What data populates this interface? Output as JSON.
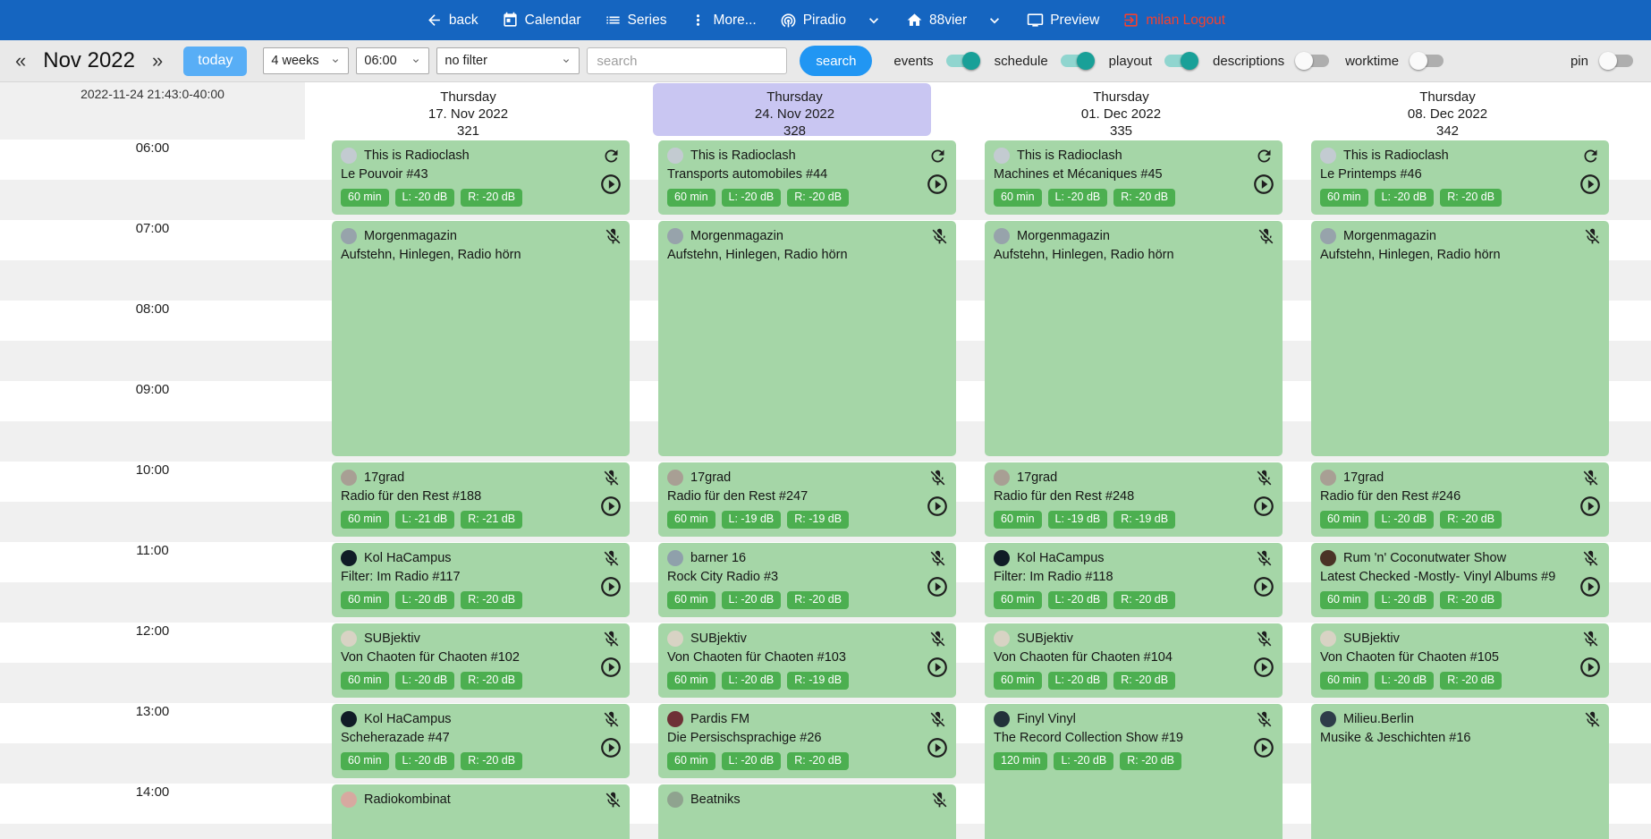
{
  "colors": {
    "navbar_bg": "#1565c0",
    "logout_red": "#f4402f",
    "today_btn": "#58aef6",
    "search_btn": "#2196f3",
    "toggle_on_thumb": "#19a098",
    "toggle_on_track": "#90d5cf",
    "event_bg": "#a5d6a7",
    "badge_bg": "#4caf50",
    "selected_day": "#c9c6f2"
  },
  "navbar": {
    "items": [
      {
        "id": "back",
        "label": "back",
        "icon": "arrow-left"
      },
      {
        "id": "calendar",
        "label": "Calendar",
        "icon": "calendar"
      },
      {
        "id": "series",
        "label": "Series",
        "icon": "list"
      },
      {
        "id": "more",
        "label": "More...",
        "icon": "kebab"
      },
      {
        "id": "piradio",
        "label": "Piradio",
        "icon": "broadcast",
        "chevron": true
      },
      {
        "id": "station",
        "label": "88vier",
        "icon": "home",
        "chevron": true
      },
      {
        "id": "preview",
        "label": "Preview",
        "icon": "preview"
      },
      {
        "id": "logout",
        "label": "milan Logout",
        "icon": "logout",
        "danger": true
      }
    ]
  },
  "toolbar": {
    "prev": "«",
    "next": "»",
    "month_label": "Nov 2022",
    "today_label": "today",
    "range_select": "4 weeks",
    "time_select": "06:00",
    "filter_select": "no filter",
    "search_placeholder": "search",
    "search_button": "search",
    "toggles": [
      {
        "label": "events",
        "on": true
      },
      {
        "label": "schedule",
        "on": true
      },
      {
        "label": "playout",
        "on": true
      },
      {
        "label": "descriptions",
        "on": false
      },
      {
        "label": "worktime",
        "on": false
      }
    ],
    "pin_toggle": {
      "label": "pin",
      "on": false
    }
  },
  "calendar": {
    "now_label": "2022-11-24 21:43:0-40:00",
    "hours": [
      "06:00",
      "07:00",
      "08:00",
      "09:00",
      "10:00",
      "11:00",
      "12:00",
      "13:00",
      "14:00"
    ],
    "columns": [
      {
        "weekday": "Thursday",
        "date": "17. Nov 2022",
        "day_number": "321",
        "highlighted": false,
        "events": [
          {
            "start": "06:00",
            "duration_min": 60,
            "series": "This is Radioclash",
            "episode": "Le Pouvoir #43",
            "badges": [
              "60 min",
              "L: -20 dB",
              "R: -20 dB"
            ],
            "icons": [
              "repeat",
              "play"
            ],
            "avatar_color": "#c3cbd1"
          },
          {
            "start": "07:00",
            "duration_min": 180,
            "series": "Morgenmagazin",
            "episode": "Aufstehn, Hinlegen, Radio hörn",
            "badges": [],
            "icons": [
              "mic-off"
            ],
            "avatar_color": "#97a3ab"
          },
          {
            "start": "10:00",
            "duration_min": 60,
            "series": "17grad",
            "episode": "Radio für den Rest #188",
            "badges": [
              "60 min",
              "L: -21 dB",
              "R: -21 dB"
            ],
            "icons": [
              "mic-off",
              "play"
            ],
            "avatar_color": "#a89f94"
          },
          {
            "start": "11:00",
            "duration_min": 60,
            "series": "Kol HaCampus",
            "episode": "Filter: Im Radio #117",
            "badges": [
              "60 min",
              "L: -20 dB",
              "R: -20 dB"
            ],
            "icons": [
              "mic-off",
              "play"
            ],
            "avatar_color": "#101c26"
          },
          {
            "start": "12:00",
            "duration_min": 60,
            "series": "SUBjektiv",
            "episode": "Von Chaoten für Chaoten #102",
            "badges": [
              "60 min",
              "L: -20 dB",
              "R: -20 dB"
            ],
            "icons": [
              "mic-off",
              "play"
            ],
            "avatar_color": "#d8d3c4"
          },
          {
            "start": "13:00",
            "duration_min": 60,
            "series": "Kol HaCampus",
            "episode": "Scheherazade #47",
            "badges": [
              "60 min",
              "L: -20 dB",
              "R: -20 dB"
            ],
            "icons": [
              "mic-off",
              "play"
            ],
            "avatar_color": "#101c26"
          },
          {
            "start": "14:00",
            "duration_min": 60,
            "series": "Radiokombinat",
            "episode": "",
            "badges": [],
            "icons": [
              "mic-off"
            ],
            "avatar_color": "#d7a9a0"
          }
        ]
      },
      {
        "weekday": "Thursday",
        "date": "24. Nov 2022",
        "day_number": "328",
        "highlighted": true,
        "events": [
          {
            "start": "06:00",
            "duration_min": 60,
            "series": "This is Radioclash",
            "episode": "Transports automobiles #44",
            "badges": [
              "60 min",
              "L: -20 dB",
              "R: -20 dB"
            ],
            "icons": [
              "repeat",
              "play"
            ],
            "avatar_color": "#c3cbd1"
          },
          {
            "start": "07:00",
            "duration_min": 180,
            "series": "Morgenmagazin",
            "episode": "Aufstehn, Hinlegen, Radio hörn",
            "badges": [],
            "icons": [
              "mic-off"
            ],
            "avatar_color": "#97a3ab"
          },
          {
            "start": "10:00",
            "duration_min": 60,
            "series": "17grad",
            "episode": "Radio für den Rest #247",
            "badges": [
              "60 min",
              "L: -19 dB",
              "R: -19 dB"
            ],
            "icons": [
              "mic-off",
              "play"
            ],
            "avatar_color": "#a89f94"
          },
          {
            "start": "11:00",
            "duration_min": 60,
            "series": "barner 16",
            "episode": "Rock City Radio #3",
            "badges": [
              "60 min",
              "L: -20 dB",
              "R: -20 dB"
            ],
            "icons": [
              "mic-off",
              "play"
            ],
            "avatar_color": "#8fa0ab"
          },
          {
            "start": "12:00",
            "duration_min": 60,
            "series": "SUBjektiv",
            "episode": "Von Chaoten für Chaoten #103",
            "badges": [
              "60 min",
              "L: -20 dB",
              "R: -19 dB"
            ],
            "icons": [
              "mic-off",
              "play"
            ],
            "avatar_color": "#d8d3c4"
          },
          {
            "start": "13:00",
            "duration_min": 60,
            "series": "Pardis FM",
            "episode": "Die Persischsprachige #26",
            "badges": [
              "60 min",
              "L: -20 dB",
              "R: -20 dB"
            ],
            "icons": [
              "mic-off",
              "play"
            ],
            "avatar_color": "#6e3136"
          },
          {
            "start": "14:00",
            "duration_min": 60,
            "series": "Beatniks",
            "episode": "",
            "badges": [],
            "icons": [
              "mic-off"
            ],
            "avatar_color": "#8fa38f"
          }
        ]
      },
      {
        "weekday": "Thursday",
        "date": "01. Dec 2022",
        "day_number": "335",
        "highlighted": false,
        "events": [
          {
            "start": "06:00",
            "duration_min": 60,
            "series": "This is Radioclash",
            "episode": "Machines et Mécaniques #45",
            "badges": [
              "60 min",
              "L: -20 dB",
              "R: -20 dB"
            ],
            "icons": [
              "repeat",
              "play"
            ],
            "avatar_color": "#c3cbd1"
          },
          {
            "start": "07:00",
            "duration_min": 180,
            "series": "Morgenmagazin",
            "episode": "Aufstehn, Hinlegen, Radio hörn",
            "badges": [],
            "icons": [
              "mic-off"
            ],
            "avatar_color": "#97a3ab"
          },
          {
            "start": "10:00",
            "duration_min": 60,
            "series": "17grad",
            "episode": "Radio für den Rest #248",
            "badges": [
              "60 min",
              "L: -19 dB",
              "R: -19 dB"
            ],
            "icons": [
              "mic-off",
              "play"
            ],
            "avatar_color": "#a89f94"
          },
          {
            "start": "11:00",
            "duration_min": 60,
            "series": "Kol HaCampus",
            "episode": "Filter: Im Radio #118",
            "badges": [
              "60 min",
              "L: -20 dB",
              "R: -20 dB"
            ],
            "icons": [
              "mic-off",
              "play"
            ],
            "avatar_color": "#101c26"
          },
          {
            "start": "12:00",
            "duration_min": 60,
            "series": "SUBjektiv",
            "episode": "Von Chaoten für Chaoten #104",
            "badges": [
              "60 min",
              "L: -20 dB",
              "R: -20 dB"
            ],
            "icons": [
              "mic-off",
              "play"
            ],
            "avatar_color": "#d8d3c4"
          },
          {
            "start": "13:00",
            "duration_min": 120,
            "series": "Finyl Vinyl",
            "episode": "The Record Collection Show #19",
            "badges": [
              "120 min",
              "L: -20 dB",
              "R: -20 dB"
            ],
            "icons": [
              "mic-off",
              "play"
            ],
            "avatar_color": "#22313a"
          }
        ]
      },
      {
        "weekday": "Thursday",
        "date": "08. Dec 2022",
        "day_number": "342",
        "highlighted": false,
        "events": [
          {
            "start": "06:00",
            "duration_min": 60,
            "series": "This is Radioclash",
            "episode": "Le Printemps #46",
            "badges": [
              "60 min",
              "L: -20 dB",
              "R: -20 dB"
            ],
            "icons": [
              "repeat",
              "play"
            ],
            "avatar_color": "#c3cbd1"
          },
          {
            "start": "07:00",
            "duration_min": 180,
            "series": "Morgenmagazin",
            "episode": "Aufstehn, Hinlegen, Radio hörn",
            "badges": [],
            "icons": [
              "mic-off"
            ],
            "avatar_color": "#97a3ab"
          },
          {
            "start": "10:00",
            "duration_min": 60,
            "series": "17grad",
            "episode": "Radio für den Rest #246",
            "badges": [
              "60 min",
              "L: -20 dB",
              "R: -20 dB"
            ],
            "icons": [
              "mic-off",
              "play"
            ],
            "avatar_color": "#a89f94"
          },
          {
            "start": "11:00",
            "duration_min": 60,
            "series": "Rum 'n' Coconutwater Show",
            "episode": "Latest Checked -Mostly- Vinyl Albums #9",
            "badges": [
              "60 min",
              "L: -20 dB",
              "R: -20 dB"
            ],
            "icons": [
              "mic-off",
              "play"
            ],
            "avatar_color": "#4a3326"
          },
          {
            "start": "12:00",
            "duration_min": 60,
            "series": "SUBjektiv",
            "episode": "Von Chaoten für Chaoten #105",
            "badges": [
              "60 min",
              "L: -20 dB",
              "R: -20 dB"
            ],
            "icons": [
              "mic-off",
              "play"
            ],
            "avatar_color": "#d8d3c4"
          },
          {
            "start": "13:00",
            "duration_min": 120,
            "series": "Milieu.Berlin",
            "episode": "Musike & Jeschichten #16",
            "badges": [],
            "icons": [
              "mic-off"
            ],
            "avatar_color": "#2e3d49"
          }
        ]
      }
    ]
  }
}
